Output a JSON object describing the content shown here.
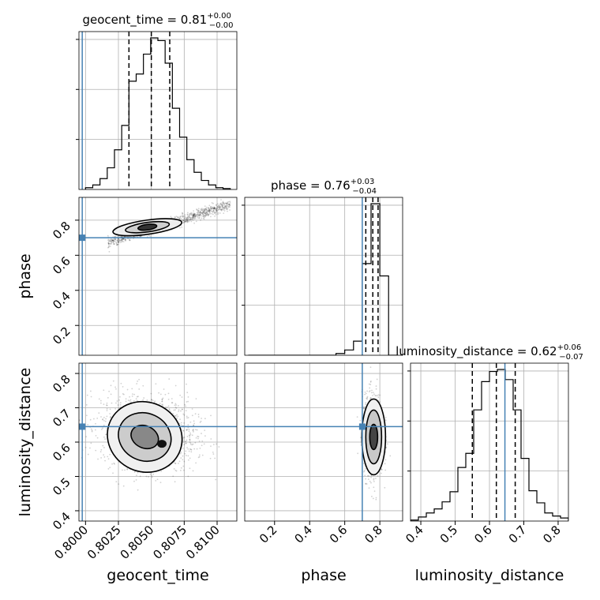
{
  "chart_data": {
    "type": "corner",
    "parameters": [
      "geocent_time",
      "phase",
      "luminosity_distance"
    ],
    "titles": {
      "geocent_time": {
        "name": "geocent_time",
        "median": "0.81",
        "plus": "+0.00",
        "minus": "−0.00"
      },
      "phase": {
        "name": "phase",
        "median": "0.76",
        "plus": "+0.03",
        "minus": "−0.04"
      },
      "luminosity_distance": {
        "name": "luminosity_distance",
        "median": "0.62",
        "plus": "+0.06",
        "minus": "−0.07"
      }
    },
    "axis_labels": {
      "x": [
        "geocent_time",
        "phase",
        "luminosity_distance"
      ],
      "y": [
        "phase",
        "luminosity_distance"
      ]
    },
    "ranges": {
      "geocent_time": [
        0.7995,
        0.8115
      ],
      "phase": [
        0.03,
        0.93
      ],
      "luminosity_distance": [
        0.37,
        0.83
      ]
    },
    "ticks": {
      "geocent_time": [
        "0.8000",
        "0.8025",
        "0.8050",
        "0.8075",
        "0.8100"
      ],
      "phase": [
        "0.2",
        "0.4",
        "0.6",
        "0.8"
      ],
      "luminosity_distance": [
        "0.4",
        "0.5",
        "0.6",
        "0.7",
        "0.8"
      ]
    },
    "truths": {
      "geocent_time": 0.79975,
      "phase": 0.7,
      "luminosity_distance": 0.645
    },
    "quantiles": {
      "geocent_time": [
        0.8033,
        0.805,
        0.8064
      ],
      "phase": [
        0.72,
        0.76,
        0.79
      ],
      "luminosity_distance": [
        0.55,
        0.62,
        0.675
      ]
    },
    "histograms": {
      "geocent_time": {
        "edges": [
          0.8,
          0.80055,
          0.8011,
          0.80165,
          0.8022,
          0.80275,
          0.8033,
          0.80385,
          0.8044,
          0.80495,
          0.8055,
          0.80605,
          0.8066,
          0.80715,
          0.8077,
          0.80825,
          0.8088,
          0.80935,
          0.8099,
          0.81045,
          0.811
        ],
        "counts": [
          2,
          5,
          12,
          24,
          44,
          71,
          120,
          128,
          150,
          168,
          165,
          140,
          90,
          58,
          33,
          19,
          10,
          5,
          2,
          1
        ]
      },
      "phase": {
        "edges": [
          0.05,
          0.1,
          0.15,
          0.2,
          0.25,
          0.3,
          0.35,
          0.4,
          0.45,
          0.5,
          0.55,
          0.6,
          0.65,
          0.7,
          0.75,
          0.8,
          0.85,
          0.9
        ],
        "counts": [
          0,
          0,
          0,
          0,
          0,
          0,
          0,
          0,
          0,
          0,
          1,
          3,
          8,
          52,
          86,
          45,
          0
        ]
      },
      "luminosity_distance": {
        "edges": [
          0.37,
          0.393,
          0.416,
          0.439,
          0.462,
          0.485,
          0.508,
          0.531,
          0.554,
          0.577,
          0.6,
          0.623,
          0.646,
          0.669,
          0.692,
          0.715,
          0.738,
          0.761,
          0.784,
          0.807,
          0.83
        ],
        "counts": [
          1,
          4,
          8,
          12,
          19,
          29,
          53,
          67,
          110,
          138,
          148,
          150,
          140,
          110,
          62,
          30,
          18,
          8,
          5,
          3
        ]
      }
    },
    "grid": true,
    "truth_color": "#4682b4"
  }
}
